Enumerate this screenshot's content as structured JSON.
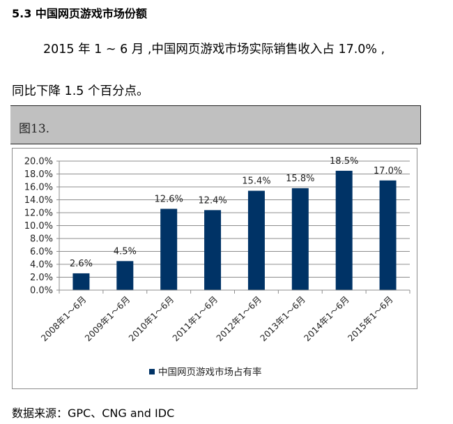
{
  "section": {
    "heading": "5.3 中国网页游戏市场份额",
    "paragraph_line1": "2015 年 1 ~ 6 月 ,中国网页游戏市场实际销售收入占 17.0% ,",
    "paragraph_line2": "同比下降 1.5 个百分点。"
  },
  "figure": {
    "caption": "图13."
  },
  "source": "数据来源：GPC、CNG and IDC",
  "colors": {
    "bar": "#003366",
    "grid": "#8c8c8c",
    "caption_band": "#c0c0c0"
  },
  "chart_data": {
    "type": "bar",
    "title": "",
    "categories": [
      "2008年1～6月",
      "2009年1～6月",
      "2010年1～6月",
      "2011年1～6月",
      "2012年1～6月",
      "2013年1～6月",
      "2014年1～6月",
      "2015年1～6月"
    ],
    "series": [
      {
        "name": "中国网页游戏市场占有率",
        "values": [
          2.6,
          4.5,
          12.6,
          12.4,
          15.4,
          15.8,
          18.5,
          17.0
        ]
      }
    ],
    "data_labels": [
      "2.6%",
      "4.5%",
      "12.6%",
      "12.4%",
      "15.4%",
      "15.8%",
      "18.5%",
      "17.0%"
    ],
    "yticks": [
      "0.0%",
      "2.0%",
      "4.0%",
      "6.0%",
      "8.0%",
      "10.0%",
      "12.0%",
      "14.0%",
      "16.0%",
      "18.0%",
      "20.0%"
    ],
    "xlabel": "",
    "ylabel": "",
    "ylim": [
      0,
      20
    ],
    "grid": true,
    "legend_position": "bottom"
  }
}
